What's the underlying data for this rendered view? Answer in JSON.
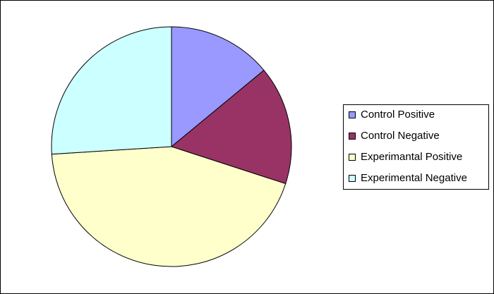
{
  "chart_data": {
    "type": "pie",
    "categories": [
      "Control Positive",
      "Control Negative",
      "Experimantal Positive",
      "Experimental Negative"
    ],
    "values": [
      14,
      16,
      44,
      26
    ],
    "colors": [
      "#9999ff",
      "#993366",
      "#ffffcc",
      "#ccffff"
    ],
    "legend": "right"
  }
}
